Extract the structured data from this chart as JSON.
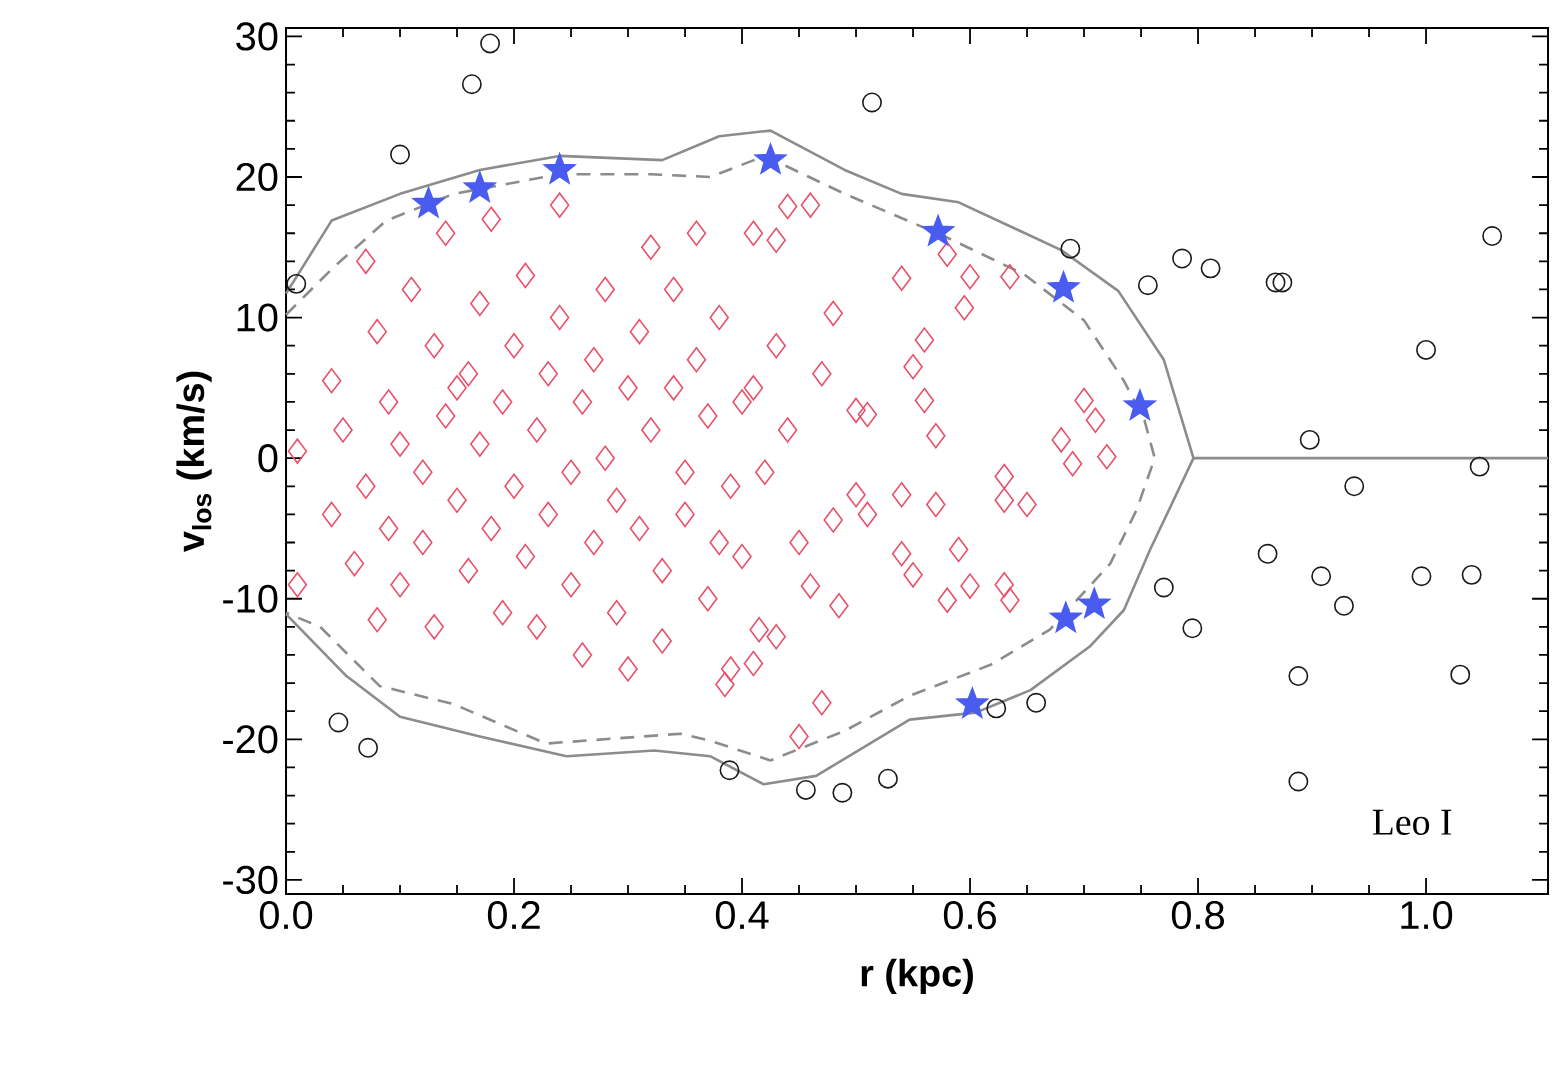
{
  "chart_data": {
    "type": "scatter",
    "xlabel": "r (kpc)",
    "ylabel": "v$_{los}$ (km/s)",
    "xlim": [
      0,
      1.107
    ],
    "ylim": [
      -31,
      30.6
    ],
    "xticks": [
      {
        "value": 0,
        "label": "0.0"
      },
      0.2,
      0.4,
      0.6,
      0.8,
      {
        "value": 1,
        "label": "1.0"
      }
    ],
    "yticks": [
      -30,
      -20,
      -10,
      0,
      10,
      20,
      30
    ],
    "annotations": [
      "Leo I"
    ],
    "series": [
      {
        "type": "line",
        "line_style": "solid",
        "color": "#8c8c8c",
        "x": [
          0,
          0.04,
          0.1,
          0.17,
          0.24,
          0.33,
          0.38,
          0.425,
          0.49,
          0.54,
          0.59,
          0.68,
          0.73,
          0.77,
          0.796,
          1.107
        ],
        "values": [
          11.7,
          16.9,
          18.8,
          20.5,
          21.5,
          21.2,
          22.9,
          23.3,
          20.5,
          18.8,
          18.2,
          14.8,
          11.9,
          7,
          0,
          0
        ]
      },
      {
        "type": "line",
        "line_style": "solid",
        "color": "#8c8c8c",
        "x": [
          0,
          0.053,
          0.1,
          0.17,
          0.246,
          0.323,
          0.372,
          0.419,
          0.465,
          0.547,
          0.605,
          0.653,
          0.705,
          0.735,
          0.758,
          0.796
        ],
        "values": [
          -11.1,
          -15.5,
          -18.4,
          -19.8,
          -21.2,
          -20.8,
          -21.2,
          -23.2,
          -22.6,
          -18.6,
          -18.1,
          -16.5,
          -13.4,
          -10.8,
          -6.5,
          0
        ]
      },
      {
        "type": "line",
        "line_style": "dashed",
        "color": "#8c8c8c",
        "x": [
          0,
          0.042,
          0.088,
          0.147,
          0.24,
          0.32,
          0.372,
          0.42,
          0.49,
          0.577,
          0.647,
          0.7,
          0.735,
          0.753,
          0.762,
          0.746,
          0.723,
          0.67,
          0.618,
          0.547,
          0.49,
          0.425,
          0.372,
          0.346,
          0.228,
          0.147,
          0.082,
          0.03,
          0
        ],
        "values": [
          10.2,
          13.6,
          16.9,
          18.8,
          20.2,
          20.2,
          20,
          21.5,
          18.8,
          15.8,
          13.1,
          9.8,
          5.5,
          2.7,
          0,
          -3.7,
          -7.5,
          -12.2,
          -14.7,
          -16.9,
          -19.4,
          -21.5,
          -20.1,
          -19.6,
          -20.3,
          -17.5,
          -16.2,
          -12,
          -11
        ]
      },
      {
        "marker": "diamond",
        "color": "#e8506a",
        "x": [
          0.01,
          0.01,
          0.04,
          0.04,
          0.05,
          0.06,
          0.07,
          0.07,
          0.08,
          0.08,
          0.09,
          0.09,
          0.1,
          0.1,
          0.11,
          0.12,
          0.12,
          0.13,
          0.13,
          0.14,
          0.14,
          0.15,
          0.15,
          0.16,
          0.16,
          0.17,
          0.17,
          0.18,
          0.18,
          0.19,
          0.19,
          0.2,
          0.2,
          0.21,
          0.21,
          0.22,
          0.22,
          0.23,
          0.23,
          0.24,
          0.24,
          0.25,
          0.25,
          0.26,
          0.26,
          0.27,
          0.27,
          0.28,
          0.28,
          0.29,
          0.29,
          0.3,
          0.3,
          0.31,
          0.31,
          0.32,
          0.32,
          0.33,
          0.33,
          0.34,
          0.34,
          0.35,
          0.35,
          0.36,
          0.36,
          0.37,
          0.37,
          0.38,
          0.38,
          0.39,
          0.39,
          0.4,
          0.4,
          0.41,
          0.42,
          0.43,
          0.44,
          0.45,
          0.47,
          0.44,
          0.46,
          0.41,
          0.43,
          0.54,
          0.58,
          0.6,
          0.635,
          0.595,
          0.48,
          0.56,
          0.55,
          0.56,
          0.5,
          0.51,
          0.57,
          0.7,
          0.71,
          0.68,
          0.63,
          0.63,
          0.65,
          0.54,
          0.57,
          0.69,
          0.72,
          0.5,
          0.51,
          0.48,
          0.54,
          0.55,
          0.59,
          0.58,
          0.6,
          0.63,
          0.635,
          0.46,
          0.485,
          0.415,
          0.43,
          0.41,
          0.385,
          0.47,
          0.45
        ],
        "values": [
          0.5,
          -9,
          5.5,
          -4,
          2,
          -7.5,
          14,
          -2,
          9,
          -11.5,
          4,
          -5,
          1,
          -9,
          12,
          -1,
          -6,
          8,
          -12,
          3,
          16,
          5,
          -3,
          6,
          -8,
          11,
          1,
          17,
          -5,
          4,
          -11,
          8,
          -2,
          13,
          -7,
          2,
          -12,
          6,
          -4,
          18,
          10,
          -1,
          -9,
          4,
          -14,
          7,
          -6,
          12,
          0,
          -3,
          -11,
          5,
          -15,
          9,
          -5,
          15,
          2,
          -8,
          -13,
          5,
          12,
          -1,
          -4,
          16,
          7,
          -10,
          3,
          -6,
          10,
          -2,
          -15,
          4,
          -7,
          5,
          -1,
          8,
          2,
          -6,
          6,
          17.9,
          18,
          16,
          15.5,
          12.8,
          14.5,
          12.9,
          12.9,
          10.7,
          10.3,
          8.4,
          6.5,
          4.1,
          3.4,
          3.1,
          1.6,
          4.1,
          2.7,
          1.3,
          -1.3,
          -3,
          -3.3,
          -2.6,
          -3.3,
          -0.4,
          0.1,
          -2.6,
          -4,
          -4.4,
          -6.8,
          -8.3,
          -6.5,
          -10.1,
          -9.1,
          -9,
          -10.1,
          -9.1,
          -10.5,
          -12.2,
          -12.7,
          -14.6,
          -16.1,
          -17.4,
          -19.8
        ]
      },
      {
        "marker": "circle",
        "color": "#1a1a1a",
        "x": [
          0.179,
          0.163,
          0.1,
          0.009,
          0.046,
          0.072,
          0.514,
          0.688,
          0.756,
          0.389,
          0.456,
          0.488,
          0.528,
          0.623,
          0.658,
          0.786,
          0.811,
          0.868,
          0.874,
          1.058,
          1.0,
          0.898,
          0.937,
          1.047,
          0.861,
          0.908,
          0.928,
          0.996,
          1.04,
          1.03,
          0.888,
          0.888,
          0.77,
          0.795
        ],
        "values": [
          29.5,
          26.6,
          21.6,
          12.4,
          -18.8,
          -20.6,
          25.3,
          14.9,
          12.3,
          -22.2,
          -23.6,
          -23.8,
          -22.8,
          -17.8,
          -17.4,
          14.2,
          13.5,
          12.5,
          12.5,
          15.8,
          7.7,
          1.3,
          -2,
          -0.6,
          -6.8,
          -8.4,
          -10.5,
          -8.4,
          -8.3,
          -15.4,
          -15.5,
          -23,
          -9.2,
          -12.1
        ]
      },
      {
        "marker": "star",
        "color": "#4a5cf0",
        "x": [
          0.125,
          0.17,
          0.24,
          0.425,
          0.572,
          0.682,
          0.749,
          0.602,
          0.684,
          0.709
        ],
        "values": [
          18.1,
          19.2,
          20.5,
          21.2,
          16.1,
          12.1,
          3.7,
          -17.5,
          -11.4,
          -10.4
        ]
      }
    ]
  }
}
